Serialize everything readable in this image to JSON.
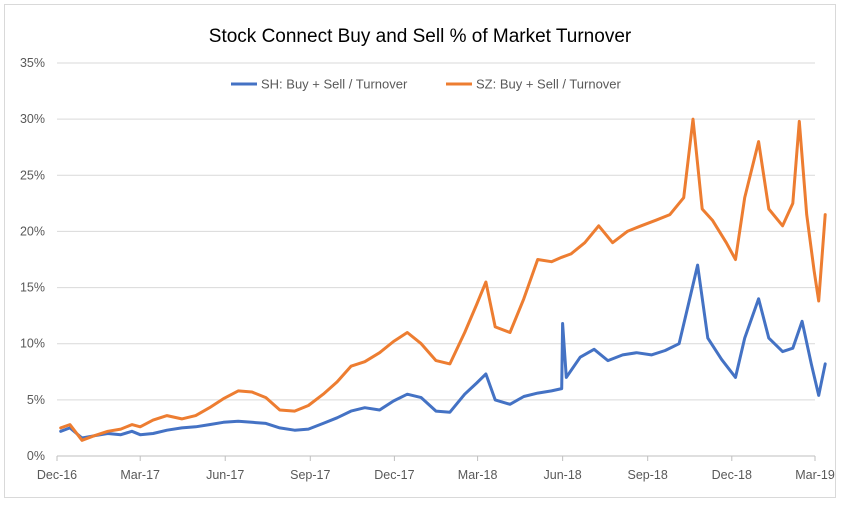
{
  "chart_data": {
    "type": "line",
    "title": "Stock Connect Buy and Sell % of Market Turnover",
    "xlabel": "",
    "ylabel": "",
    "ylim": [
      0,
      35
    ],
    "y_ticks": [
      "0%",
      "5%",
      "10%",
      "15%",
      "20%",
      "25%",
      "30%",
      "35%"
    ],
    "y_tick_values": [
      0,
      5,
      10,
      15,
      20,
      25,
      30,
      35
    ],
    "x_ticks": [
      {
        "label": "Dec-16",
        "date": "2016-12-01"
      },
      {
        "label": "Mar-17",
        "date": "2017-03-01"
      },
      {
        "label": "Jun-17",
        "date": "2017-06-01"
      },
      {
        "label": "Sep-17",
        "date": "2017-09-01"
      },
      {
        "label": "Dec-17",
        "date": "2017-12-01"
      },
      {
        "label": "Mar-18",
        "date": "2018-03-01"
      },
      {
        "label": "Jun-18",
        "date": "2018-06-01"
      },
      {
        "label": "Sep-18",
        "date": "2018-09-01"
      },
      {
        "label": "Dec-18",
        "date": "2018-12-01"
      },
      {
        "label": "Mar-19",
        "date": "2019-03-01"
      }
    ],
    "grid": true,
    "legend_position": "top",
    "series": [
      {
        "name": "SH: Buy + Sell / Turnover",
        "color": "#4472C4",
        "points": [
          [
            "2016-12-05",
            2.2
          ],
          [
            "2016-12-15",
            2.5
          ],
          [
            "2016-12-28",
            1.6
          ],
          [
            "2017-01-10",
            1.8
          ],
          [
            "2017-01-25",
            2.0
          ],
          [
            "2017-02-08",
            1.9
          ],
          [
            "2017-02-20",
            2.2
          ],
          [
            "2017-03-01",
            1.9
          ],
          [
            "2017-03-15",
            2.0
          ],
          [
            "2017-03-30",
            2.3
          ],
          [
            "2017-04-15",
            2.5
          ],
          [
            "2017-04-30",
            2.6
          ],
          [
            "2017-05-15",
            2.8
          ],
          [
            "2017-05-30",
            3.0
          ],
          [
            "2017-06-15",
            3.1
          ],
          [
            "2017-06-30",
            3.0
          ],
          [
            "2017-07-15",
            2.9
          ],
          [
            "2017-07-30",
            2.5
          ],
          [
            "2017-08-15",
            2.3
          ],
          [
            "2017-08-30",
            2.4
          ],
          [
            "2017-09-15",
            2.9
          ],
          [
            "2017-09-30",
            3.4
          ],
          [
            "2017-10-15",
            4.0
          ],
          [
            "2017-10-30",
            4.3
          ],
          [
            "2017-11-15",
            4.1
          ],
          [
            "2017-11-30",
            4.9
          ],
          [
            "2017-12-15",
            5.5
          ],
          [
            "2017-12-30",
            5.2
          ],
          [
            "2018-01-15",
            4.0
          ],
          [
            "2018-01-30",
            3.9
          ],
          [
            "2018-02-15",
            5.5
          ],
          [
            "2018-02-28",
            6.5
          ],
          [
            "2018-03-10",
            7.3
          ],
          [
            "2018-03-20",
            5.0
          ],
          [
            "2018-04-05",
            4.6
          ],
          [
            "2018-04-20",
            5.3
          ],
          [
            "2018-05-05",
            5.6
          ],
          [
            "2018-05-20",
            5.8
          ],
          [
            "2018-05-31",
            6.0
          ],
          [
            "2018-06-01",
            11.8
          ],
          [
            "2018-06-05",
            7.0
          ],
          [
            "2018-06-20",
            8.8
          ],
          [
            "2018-07-05",
            9.5
          ],
          [
            "2018-07-20",
            8.5
          ],
          [
            "2018-08-05",
            9.0
          ],
          [
            "2018-08-20",
            9.2
          ],
          [
            "2018-09-05",
            9.0
          ],
          [
            "2018-09-20",
            9.4
          ],
          [
            "2018-10-05",
            10.0
          ],
          [
            "2018-10-15",
            13.5
          ],
          [
            "2018-10-25",
            17.0
          ],
          [
            "2018-11-05",
            10.5
          ],
          [
            "2018-11-20",
            8.6
          ],
          [
            "2018-12-05",
            7.0
          ],
          [
            "2018-12-15",
            10.5
          ],
          [
            "2018-12-30",
            14.0
          ],
          [
            "2019-01-10",
            10.5
          ],
          [
            "2019-01-25",
            9.3
          ],
          [
            "2019-02-05",
            9.6
          ],
          [
            "2019-02-15",
            12.0
          ],
          [
            "2019-02-25",
            8.2
          ],
          [
            "2019-03-05",
            5.4
          ],
          [
            "2019-03-12",
            8.2
          ]
        ]
      },
      {
        "name": "SZ: Buy + Sell / Turnover",
        "color": "#ED7D31",
        "points": [
          [
            "2016-12-05",
            2.5
          ],
          [
            "2016-12-15",
            2.8
          ],
          [
            "2016-12-28",
            1.4
          ],
          [
            "2017-01-10",
            1.8
          ],
          [
            "2017-01-25",
            2.2
          ],
          [
            "2017-02-08",
            2.4
          ],
          [
            "2017-02-20",
            2.8
          ],
          [
            "2017-03-01",
            2.6
          ],
          [
            "2017-03-15",
            3.2
          ],
          [
            "2017-03-30",
            3.6
          ],
          [
            "2017-04-15",
            3.3
          ],
          [
            "2017-04-30",
            3.6
          ],
          [
            "2017-05-15",
            4.3
          ],
          [
            "2017-05-30",
            5.1
          ],
          [
            "2017-06-15",
            5.8
          ],
          [
            "2017-06-30",
            5.7
          ],
          [
            "2017-07-15",
            5.2
          ],
          [
            "2017-07-30",
            4.1
          ],
          [
            "2017-08-15",
            4.0
          ],
          [
            "2017-08-30",
            4.5
          ],
          [
            "2017-09-15",
            5.5
          ],
          [
            "2017-09-30",
            6.6
          ],
          [
            "2017-10-15",
            8.0
          ],
          [
            "2017-10-30",
            8.4
          ],
          [
            "2017-11-15",
            9.2
          ],
          [
            "2017-11-30",
            10.2
          ],
          [
            "2017-12-15",
            11.0
          ],
          [
            "2017-12-30",
            10.0
          ],
          [
            "2018-01-15",
            8.5
          ],
          [
            "2018-01-30",
            8.2
          ],
          [
            "2018-02-15",
            11.0
          ],
          [
            "2018-02-28",
            13.5
          ],
          [
            "2018-03-10",
            15.5
          ],
          [
            "2018-03-20",
            11.5
          ],
          [
            "2018-04-05",
            11.0
          ],
          [
            "2018-04-20",
            14.0
          ],
          [
            "2018-05-05",
            17.5
          ],
          [
            "2018-05-20",
            17.3
          ],
          [
            "2018-05-31",
            17.7
          ],
          [
            "2018-06-10",
            18.0
          ],
          [
            "2018-06-25",
            19.0
          ],
          [
            "2018-07-10",
            20.5
          ],
          [
            "2018-07-25",
            19.0
          ],
          [
            "2018-08-10",
            20.0
          ],
          [
            "2018-08-25",
            20.5
          ],
          [
            "2018-09-10",
            21.0
          ],
          [
            "2018-09-25",
            21.5
          ],
          [
            "2018-10-10",
            23.0
          ],
          [
            "2018-10-20",
            30.0
          ],
          [
            "2018-10-30",
            22.0
          ],
          [
            "2018-11-10",
            21.0
          ],
          [
            "2018-11-25",
            19.0
          ],
          [
            "2018-12-05",
            17.5
          ],
          [
            "2018-12-15",
            23.0
          ],
          [
            "2018-12-30",
            28.0
          ],
          [
            "2019-01-10",
            22.0
          ],
          [
            "2019-01-25",
            20.5
          ],
          [
            "2019-02-05",
            22.5
          ],
          [
            "2019-02-12",
            29.8
          ],
          [
            "2019-02-20",
            21.5
          ],
          [
            "2019-02-28",
            16.5
          ],
          [
            "2019-03-05",
            13.8
          ],
          [
            "2019-03-12",
            21.5
          ]
        ]
      }
    ]
  }
}
